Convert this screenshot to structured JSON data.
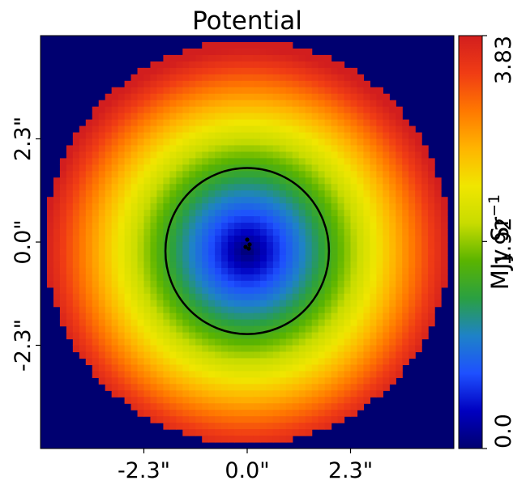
{
  "chart_data": {
    "type": "heatmap",
    "title": "Potential",
    "xlabel": "",
    "ylabel": "",
    "x_ticks": [
      "-2.3\"",
      "0.0\"",
      "2.3\""
    ],
    "y_ticks": [
      "2.3\"",
      "0.0\"",
      "-2.3\""
    ],
    "x_tick_values": [
      -2.3,
      0.0,
      2.3
    ],
    "y_tick_values": [
      2.3,
      0.0,
      -2.3
    ],
    "xlim": [
      -4.6,
      4.6
    ],
    "ylim": [
      -4.6,
      4.6
    ],
    "colorbar": {
      "label": "MJy Sr",
      "label_superscript": "−1",
      "ticks": [
        "0.0",
        "1.92",
        "3.83"
      ],
      "tick_values": [
        0.0,
        1.92,
        3.83
      ],
      "range": [
        0.0,
        3.83
      ],
      "colormap": [
        "#000070",
        "#0000c0",
        "#1e50ff",
        "#1e82c8",
        "#2aa042",
        "#5ab400",
        "#c8dc00",
        "#f0e600",
        "#ffb400",
        "#ff7800",
        "#f03c14",
        "#d21e1e"
      ]
    },
    "data_radius": 4.5,
    "background_value": 0.0,
    "field_min": 0.0,
    "field_max": 3.83,
    "center": [
      0.0,
      -0.2
    ],
    "contour": {
      "center": [
        0.0,
        -0.2
      ],
      "radius_x": 1.82,
      "radius_y": 1.85,
      "color": "#000000"
    },
    "marker": {
      "x": 0.0,
      "y": 0.0,
      "color": "#000000"
    },
    "grid": false
  }
}
